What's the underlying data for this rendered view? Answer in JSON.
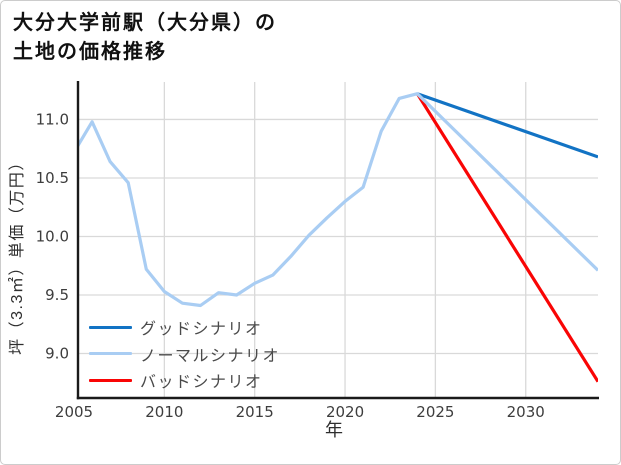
{
  "title": {
    "line1": "大分大学前駅（大分県）の",
    "line2": "土地の価格推移"
  },
  "chart_data": {
    "type": "line",
    "title": "大分大学前駅（大分県）の土地の価格推移",
    "xlabel": "年",
    "ylabel": "坪（3.3㎡）単価（万円）",
    "xlim": [
      2005,
      2034
    ],
    "ylim": [
      8.62,
      11.32
    ],
    "x_ticks": [
      2005,
      2010,
      2015,
      2020,
      2025,
      2030
    ],
    "y_ticks": [
      9.0,
      9.5,
      10.0,
      10.5,
      11.0
    ],
    "grid": true,
    "legend_position": "lower-left",
    "legend_frame": false,
    "series": [
      {
        "name": "グッドシナリオ",
        "color": "#1273c4",
        "x": [
          2024,
          2034
        ],
        "y": [
          11.22,
          10.68
        ]
      },
      {
        "name": "ノーマルシナリオ",
        "color": "#a9cdf3",
        "x": [
          2005,
          2006,
          2007,
          2008,
          2009,
          2010,
          2011,
          2012,
          2013,
          2014,
          2015,
          2016,
          2017,
          2018,
          2019,
          2020,
          2021,
          2022,
          2023,
          2024,
          2034
        ],
        "y": [
          10.72,
          10.98,
          10.64,
          10.46,
          9.72,
          9.53,
          9.43,
          9.41,
          9.52,
          9.5,
          9.6,
          9.67,
          9.83,
          10.01,
          10.16,
          10.3,
          10.42,
          10.9,
          11.18,
          11.22,
          9.71
        ]
      },
      {
        "name": "バッドシナリオ",
        "color": "#f90505",
        "x": [
          2024,
          2034
        ],
        "y": [
          11.22,
          8.76
        ]
      }
    ]
  },
  "colors": {
    "background": "#ffffff",
    "border": "#cccccc",
    "grid": "#d9d9d9",
    "spine": "#1a1a1a",
    "tick_text": "#3d3d3d",
    "axis_label_text": "#2e2e2e",
    "legend_text": "#4a4a4a",
    "title_text": "#111111"
  }
}
